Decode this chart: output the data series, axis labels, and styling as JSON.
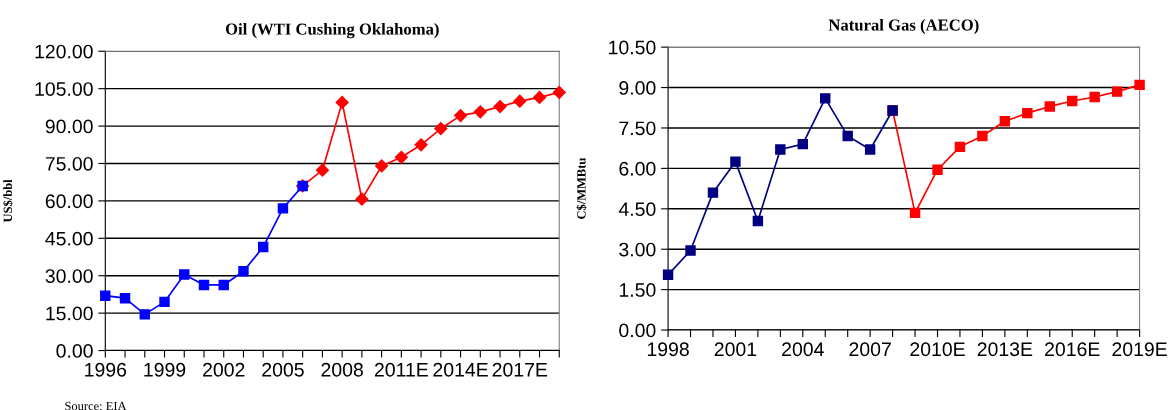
{
  "chart_data": [
    {
      "type": "line",
      "title": "Oil (WTI Cushing Oklahoma)",
      "ylabel": "US$/bbl",
      "categories": [
        "1996",
        null,
        null,
        "1999",
        null,
        null,
        "2002",
        null,
        null,
        "2005",
        null,
        null,
        "2008",
        null,
        null,
        "2011E",
        null,
        null,
        "2014E",
        null,
        null,
        "2017E",
        null,
        null
      ],
      "series": [
        {
          "color": "#ff0000",
          "marker": "diamond",
          "values": [
            null,
            null,
            null,
            null,
            null,
            null,
            null,
            null,
            null,
            null,
            66,
            72.3,
            99.5,
            60.7,
            74,
            77.5,
            82.5,
            89,
            94.2,
            95.7,
            97.8,
            100,
            101.5,
            103.5
          ]
        },
        {
          "color": "#0000ff",
          "marker": "square",
          "values": [
            22,
            21,
            14.5,
            19.5,
            30.5,
            26.3,
            26.3,
            31.8,
            41.5,
            57,
            66,
            null,
            null,
            null,
            null,
            null,
            null,
            null,
            null,
            null,
            null,
            null,
            null,
            null
          ]
        }
      ],
      "ylim": [
        0,
        120
      ],
      "yticks": [
        {
          "value": 0,
          "label": "0.00"
        },
        {
          "value": 15,
          "label": "15.00"
        },
        {
          "value": 30,
          "label": "30.00"
        },
        {
          "value": 45,
          "label": "45.00"
        },
        {
          "value": 60,
          "label": "60.00"
        },
        {
          "value": 75,
          "label": "75.00"
        },
        {
          "value": 90,
          "label": "90.00"
        },
        {
          "value": 105,
          "label": "105.00"
        },
        {
          "value": 120,
          "label": "120.00"
        }
      ],
      "grid": "y",
      "legend": false,
      "line_style": "solid",
      "annotations": [
        "Source: EIA"
      ]
    },
    {
      "type": "line",
      "title": "Natural Gas (AECO)",
      "ylabel": "C$/MMBtu",
      "categories": [
        "1998",
        null,
        null,
        "2001",
        null,
        null,
        "2004",
        null,
        null,
        "2007",
        null,
        null,
        "2010E",
        null,
        null,
        "2013E",
        null,
        null,
        "2016E",
        null,
        null,
        "2019E"
      ],
      "series": [
        {
          "color": "#ff0000",
          "marker": "square",
          "values": [
            null,
            null,
            null,
            null,
            null,
            null,
            null,
            null,
            null,
            null,
            8.15,
            4.35,
            5.95,
            6.8,
            7.2,
            7.75,
            8.05,
            8.3,
            8.5,
            8.65,
            8.85,
            9.1
          ]
        },
        {
          "color": "#000080",
          "marker": "square",
          "values": [
            2.05,
            2.95,
            5.1,
            6.25,
            4.05,
            6.7,
            6.9,
            8.6,
            7.2,
            6.7,
            8.15,
            null,
            null,
            null,
            null,
            null,
            null,
            null,
            null,
            null,
            null,
            null
          ]
        }
      ],
      "ylim": [
        0,
        10.5
      ],
      "yticks": [
        {
          "value": 0,
          "label": "0.00"
        },
        {
          "value": 1.5,
          "label": "1.50"
        },
        {
          "value": 3,
          "label": "3.00"
        },
        {
          "value": 4.5,
          "label": "4.50"
        },
        {
          "value": 6,
          "label": "6.00"
        },
        {
          "value": 7.5,
          "label": "7.50"
        },
        {
          "value": 9,
          "label": "9.00"
        },
        {
          "value": 10.5,
          "label": "10.50"
        }
      ],
      "grid": "y",
      "legend": false,
      "line_style": "solid"
    }
  ]
}
